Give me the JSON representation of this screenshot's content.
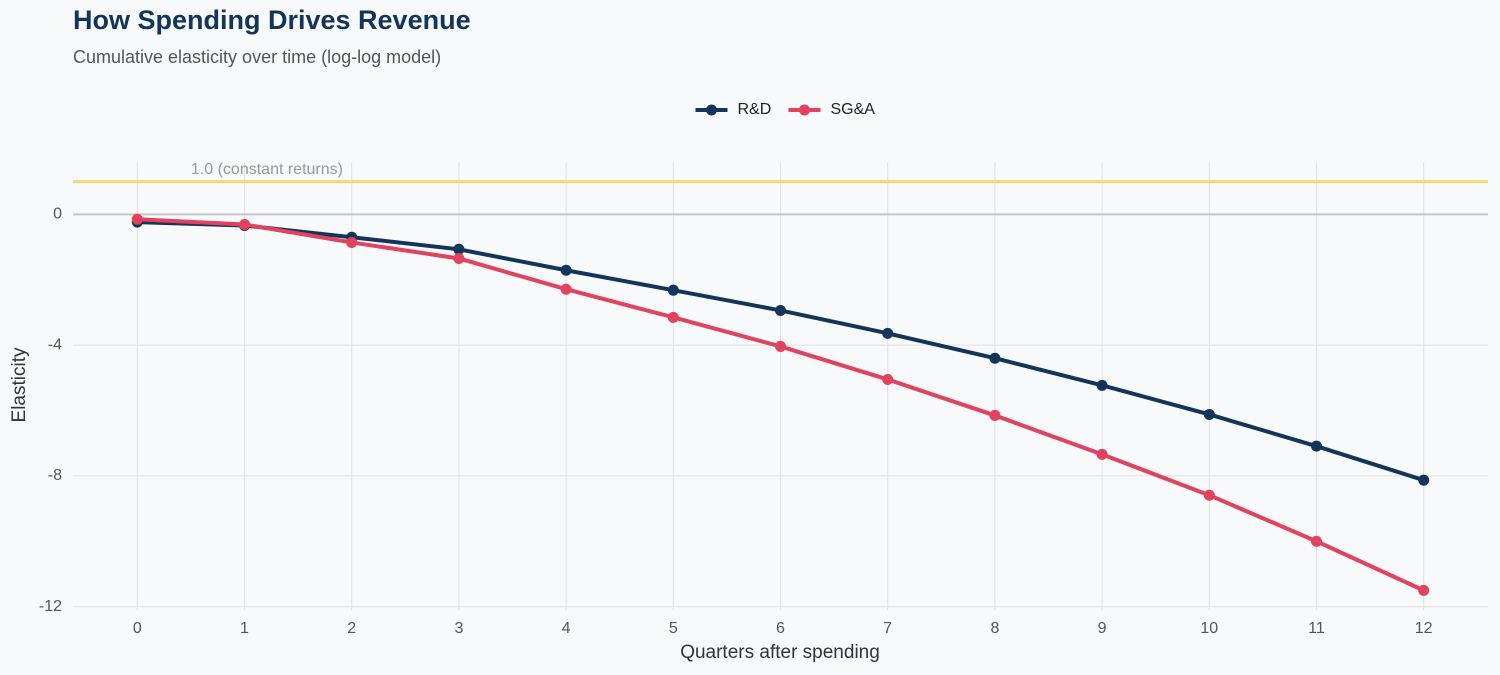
{
  "chart_data": {
    "type": "line",
    "title": "How Spending Drives Revenue",
    "subtitle": "Cumulative elasticity over time (log-log model)",
    "x_label": "Quarters after spending",
    "y_label": "Elasticity",
    "x": [
      0,
      1,
      2,
      3,
      4,
      5,
      6,
      7,
      8,
      9,
      10,
      11,
      12
    ],
    "series": [
      {
        "name": "R&D",
        "color": "#12355b",
        "values": [
          -0.24,
          -0.34,
          -0.7,
          -1.07,
          -1.71,
          -2.32,
          -2.94,
          -3.64,
          -4.4,
          -5.23,
          -6.12,
          -7.09,
          -8.13
        ]
      },
      {
        "name": "SG&A",
        "color": "#e3425f",
        "values": [
          -0.15,
          -0.31,
          -0.86,
          -1.35,
          -2.29,
          -3.15,
          -4.04,
          -5.05,
          -6.15,
          -7.34,
          -8.59,
          -10.0,
          -11.5
        ]
      }
    ],
    "xlim": [
      -0.6,
      12.6
    ],
    "ylim": [
      -12.1,
      1.6
    ],
    "xticks": [
      0,
      1,
      2,
      3,
      4,
      5,
      6,
      7,
      8,
      9,
      10,
      11,
      12
    ],
    "yticks": [
      -12,
      -8,
      -4,
      0
    ],
    "grid": true,
    "legend": "top",
    "reference_line": {
      "value": 1,
      "label": "1.0 (constant returns)",
      "color": "#f5d77a"
    }
  }
}
